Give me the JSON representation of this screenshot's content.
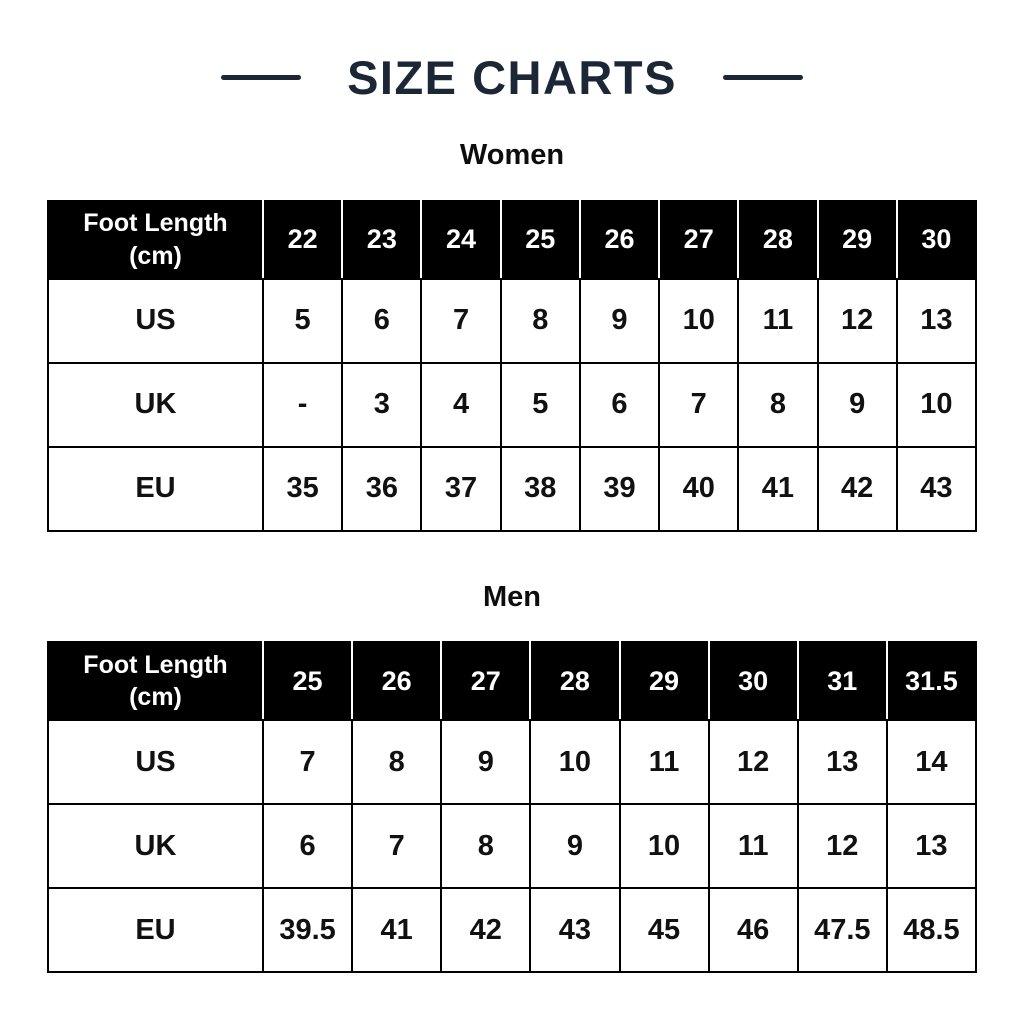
{
  "title": {
    "text": "SIZE CHARTS"
  },
  "colors": {
    "accent_navy": "#1b2734",
    "header_bg": "#000000",
    "header_text": "#ffffff",
    "table_border": "#000000",
    "page_bg": "#ffffff",
    "body_text": "#111111"
  },
  "chart_data": [
    {
      "type": "table",
      "title": "Women",
      "columns": [
        "Foot Length\n(cm)",
        "22",
        "23",
        "24",
        "25",
        "26",
        "27",
        "28",
        "29",
        "30"
      ],
      "rows": [
        [
          "US",
          "5",
          "6",
          "7",
          "8",
          "9",
          "10",
          "11",
          "12",
          "13"
        ],
        [
          "UK",
          "-",
          "3",
          "4",
          "5",
          "6",
          "7",
          "8",
          "9",
          "10"
        ],
        [
          "EU",
          "35",
          "36",
          "37",
          "38",
          "39",
          "40",
          "41",
          "42",
          "43"
        ]
      ]
    },
    {
      "type": "table",
      "title": "Men",
      "columns": [
        "Foot Length\n(cm)",
        "25",
        "26",
        "27",
        "28",
        "29",
        "30",
        "31",
        "31.5"
      ],
      "rows": [
        [
          "US",
          "7",
          "8",
          "9",
          "10",
          "11",
          "12",
          "13",
          "14"
        ],
        [
          "UK",
          "6",
          "7",
          "8",
          "9",
          "10",
          "11",
          "12",
          "13"
        ],
        [
          "EU",
          "39.5",
          "41",
          "42",
          "43",
          "45",
          "46",
          "47.5",
          "48.5"
        ]
      ]
    }
  ]
}
